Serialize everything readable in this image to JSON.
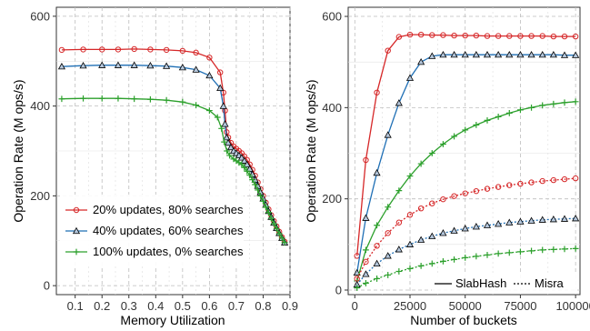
{
  "colors": {
    "red": "#d62728",
    "blue": "#1f6fb5",
    "green": "#2ca02c"
  },
  "chart_data": [
    {
      "type": "line",
      "xlabel": "Memory Utilization",
      "ylabel": "Operation Rate (M ops/s)",
      "xlim": [
        0.03,
        0.9
      ],
      "ylim": [
        -20,
        620
      ],
      "xticks": [
        0.1,
        0.2,
        0.3,
        0.4,
        0.5,
        0.6,
        0.7,
        0.8,
        0.9
      ],
      "xtick_labels": [
        "0.1",
        "0.2",
        "0.3",
        "0.4",
        "0.5",
        "0.6",
        "0.7",
        "0.8",
        "0.9"
      ],
      "yticks": [
        0,
        200,
        400,
        600
      ],
      "ytick_labels": [
        "0",
        "200",
        "400",
        "600"
      ],
      "grid": true,
      "legend_position": "lower-left",
      "series": [
        {
          "name": "20% updates, 80% searches",
          "color": "red",
          "marker": "circle",
          "line": "solid",
          "points": [
            [
              0.05,
              525
            ],
            [
              0.13,
              526
            ],
            [
              0.2,
              526
            ],
            [
              0.26,
              526
            ],
            [
              0.32,
              527
            ],
            [
              0.38,
              526
            ],
            [
              0.44,
              525
            ],
            [
              0.5,
              523
            ],
            [
              0.55,
              519
            ],
            [
              0.6,
              508
            ],
            [
              0.64,
              475
            ],
            [
              0.652,
              430
            ],
            [
              0.658,
              390
            ],
            [
              0.664,
              342
            ],
            [
              0.67,
              330
            ],
            [
              0.68,
              318
            ],
            [
              0.69,
              310
            ],
            [
              0.7,
              305
            ],
            [
              0.71,
              300
            ],
            [
              0.72,
              295
            ],
            [
              0.73,
              288
            ],
            [
              0.74,
              280
            ],
            [
              0.75,
              270
            ],
            [
              0.76,
              258
            ],
            [
              0.77,
              245
            ],
            [
              0.78,
              230
            ],
            [
              0.79,
              215
            ],
            [
              0.8,
              200
            ],
            [
              0.81,
              185
            ],
            [
              0.82,
              170
            ],
            [
              0.83,
              157
            ],
            [
              0.84,
              144
            ],
            [
              0.85,
              132
            ],
            [
              0.86,
              120
            ],
            [
              0.87,
              108
            ],
            [
              0.88,
              98
            ]
          ]
        },
        {
          "name": "40% updates, 60% searches",
          "color": "blue",
          "marker": "triangle",
          "line": "solid",
          "points": [
            [
              0.05,
              488
            ],
            [
              0.13,
              490
            ],
            [
              0.2,
              491
            ],
            [
              0.26,
              491
            ],
            [
              0.32,
              491
            ],
            [
              0.38,
              490
            ],
            [
              0.44,
              489
            ],
            [
              0.5,
              486
            ],
            [
              0.55,
              481
            ],
            [
              0.6,
              468
            ],
            [
              0.64,
              440
            ],
            [
              0.652,
              400
            ],
            [
              0.658,
              360
            ],
            [
              0.664,
              330
            ],
            [
              0.67,
              318
            ],
            [
              0.68,
              308
            ],
            [
              0.69,
              300
            ],
            [
              0.7,
              295
            ],
            [
              0.71,
              290
            ],
            [
              0.72,
              285
            ],
            [
              0.73,
              278
            ],
            [
              0.74,
              270
            ],
            [
              0.75,
              260
            ],
            [
              0.76,
              248
            ],
            [
              0.77,
              236
            ],
            [
              0.78,
              222
            ],
            [
              0.79,
              208
            ],
            [
              0.8,
              194
            ],
            [
              0.81,
              180
            ],
            [
              0.82,
              166
            ],
            [
              0.83,
              153
            ],
            [
              0.84,
              140
            ],
            [
              0.85,
              128
            ],
            [
              0.86,
              117
            ],
            [
              0.87,
              106
            ],
            [
              0.88,
              96
            ]
          ]
        },
        {
          "name": "100% updates, 0% searches",
          "color": "green",
          "marker": "plus",
          "line": "solid",
          "points": [
            [
              0.05,
              416
            ],
            [
              0.13,
              417
            ],
            [
              0.2,
              417
            ],
            [
              0.26,
              417
            ],
            [
              0.32,
              416
            ],
            [
              0.38,
              415
            ],
            [
              0.44,
              413
            ],
            [
              0.5,
              409
            ],
            [
              0.55,
              402
            ],
            [
              0.6,
              390
            ],
            [
              0.63,
              375
            ],
            [
              0.645,
              350
            ],
            [
              0.655,
              320
            ],
            [
              0.665,
              300
            ],
            [
              0.675,
              290
            ],
            [
              0.69,
              282
            ],
            [
              0.7,
              278
            ],
            [
              0.71,
              274
            ],
            [
              0.72,
              270
            ],
            [
              0.73,
              263
            ],
            [
              0.74,
              255
            ],
            [
              0.75,
              246
            ],
            [
              0.76,
              236
            ],
            [
              0.77,
              225
            ],
            [
              0.78,
              213
            ],
            [
              0.79,
              200
            ],
            [
              0.8,
              188
            ],
            [
              0.81,
              175
            ],
            [
              0.82,
              163
            ],
            [
              0.83,
              150
            ],
            [
              0.84,
              138
            ],
            [
              0.85,
              127
            ],
            [
              0.86,
              116
            ],
            [
              0.87,
              106
            ],
            [
              0.88,
              96
            ]
          ]
        }
      ]
    },
    {
      "type": "line",
      "xlabel": "Number of buckets",
      "ylabel": "Operation Rate (M ops/s)",
      "xlim": [
        -3000,
        102000
      ],
      "ylim": [
        -10,
        620
      ],
      "xticks": [
        0,
        25000,
        50000,
        75000,
        100000
      ],
      "xtick_labels": [
        "0",
        "25000",
        "50000",
        "75000",
        "100000"
      ],
      "yticks": [
        0,
        200,
        400,
        600
      ],
      "ytick_labels": [
        "0",
        "200",
        "400",
        "600"
      ],
      "grid": true,
      "legend_position": "bottom-right",
      "legend": [
        {
          "label": "SlabHash",
          "line": "solid"
        },
        {
          "label": "Misra",
          "line": "dotted"
        }
      ],
      "series": [
        {
          "color": "red",
          "marker": "circle",
          "line": "solid",
          "points": [
            [
              1000,
              75
            ],
            [
              5000,
              285
            ],
            [
              10000,
              433
            ],
            [
              15000,
              525
            ],
            [
              20000,
              555
            ],
            [
              25000,
              560
            ],
            [
              30000,
              560
            ],
            [
              35000,
              559
            ],
            [
              40000,
              559
            ],
            [
              45000,
              558
            ],
            [
              50000,
              558
            ],
            [
              55000,
              558
            ],
            [
              60000,
              557
            ],
            [
              65000,
              557
            ],
            [
              70000,
              557
            ],
            [
              75000,
              557
            ],
            [
              80000,
              557
            ],
            [
              85000,
              557
            ],
            [
              90000,
              556
            ],
            [
              95000,
              556
            ],
            [
              100000,
              556
            ]
          ]
        },
        {
          "color": "blue",
          "marker": "triangle",
          "line": "solid",
          "points": [
            [
              1000,
              38
            ],
            [
              5000,
              158
            ],
            [
              10000,
              257
            ],
            [
              15000,
              340
            ],
            [
              20000,
              410
            ],
            [
              25000,
              465
            ],
            [
              30000,
              500
            ],
            [
              35000,
              513
            ],
            [
              40000,
              516
            ],
            [
              45000,
              516
            ],
            [
              50000,
              516
            ],
            [
              55000,
              516
            ],
            [
              60000,
              516
            ],
            [
              65000,
              516
            ],
            [
              70000,
              516
            ],
            [
              75000,
              516
            ],
            [
              80000,
              516
            ],
            [
              85000,
              516
            ],
            [
              90000,
              516
            ],
            [
              95000,
              515
            ],
            [
              100000,
              515
            ]
          ]
        },
        {
          "color": "green",
          "marker": "plus",
          "line": "solid",
          "points": [
            [
              1000,
              20
            ],
            [
              5000,
              88
            ],
            [
              10000,
              142
            ],
            [
              15000,
              182
            ],
            [
              20000,
              218
            ],
            [
              25000,
              250
            ],
            [
              30000,
              277
            ],
            [
              35000,
              300
            ],
            [
              40000,
              320
            ],
            [
              45000,
              337
            ],
            [
              50000,
              351
            ],
            [
              55000,
              362
            ],
            [
              60000,
              372
            ],
            [
              65000,
              380
            ],
            [
              70000,
              388
            ],
            [
              75000,
              395
            ],
            [
              80000,
              400
            ],
            [
              85000,
              405
            ],
            [
              90000,
              408
            ],
            [
              95000,
              411
            ],
            [
              100000,
              413
            ]
          ]
        },
        {
          "color": "red",
          "marker": "circle",
          "line": "dotted",
          "points": [
            [
              1000,
              25
            ],
            [
              5000,
              62
            ],
            [
              10000,
              97
            ],
            [
              15000,
              125
            ],
            [
              20000,
              148
            ],
            [
              25000,
              165
            ],
            [
              30000,
              179
            ],
            [
              35000,
              190
            ],
            [
              40000,
              199
            ],
            [
              45000,
              206
            ],
            [
              50000,
              212
            ],
            [
              55000,
              217
            ],
            [
              60000,
              222
            ],
            [
              65000,
              226
            ],
            [
              70000,
              230
            ],
            [
              75000,
              233
            ],
            [
              80000,
              236
            ],
            [
              85000,
              239
            ],
            [
              90000,
              241
            ],
            [
              95000,
              243
            ],
            [
              100000,
              245
            ]
          ]
        },
        {
          "color": "blue",
          "marker": "triangle",
          "line": "dotted",
          "points": [
            [
              1000,
              12
            ],
            [
              5000,
              35
            ],
            [
              10000,
              58
            ],
            [
              15000,
              75
            ],
            [
              20000,
              89
            ],
            [
              25000,
              100
            ],
            [
              30000,
              110
            ],
            [
              35000,
              118
            ],
            [
              40000,
              125
            ],
            [
              45000,
              130
            ],
            [
              50000,
              135
            ],
            [
              55000,
              139
            ],
            [
              60000,
              142
            ],
            [
              65000,
              145
            ],
            [
              70000,
              148
            ],
            [
              75000,
              150
            ],
            [
              80000,
              152
            ],
            [
              85000,
              154
            ],
            [
              90000,
              155
            ],
            [
              95000,
              156
            ],
            [
              100000,
              157
            ]
          ]
        },
        {
          "color": "green",
          "marker": "plus",
          "line": "dotted",
          "points": [
            [
              1000,
              5
            ],
            [
              5000,
              15
            ],
            [
              10000,
              25
            ],
            [
              15000,
              33
            ],
            [
              20000,
              41
            ],
            [
              25000,
              47
            ],
            [
              30000,
              53
            ],
            [
              35000,
              58
            ],
            [
              40000,
              63
            ],
            [
              45000,
              67
            ],
            [
              50000,
              71
            ],
            [
              55000,
              74
            ],
            [
              60000,
              77
            ],
            [
              65000,
              80
            ],
            [
              70000,
              82
            ],
            [
              75000,
              84
            ],
            [
              80000,
              86
            ],
            [
              85000,
              88
            ],
            [
              90000,
              89
            ],
            [
              95000,
              90
            ],
            [
              100000,
              91
            ]
          ]
        }
      ]
    }
  ]
}
